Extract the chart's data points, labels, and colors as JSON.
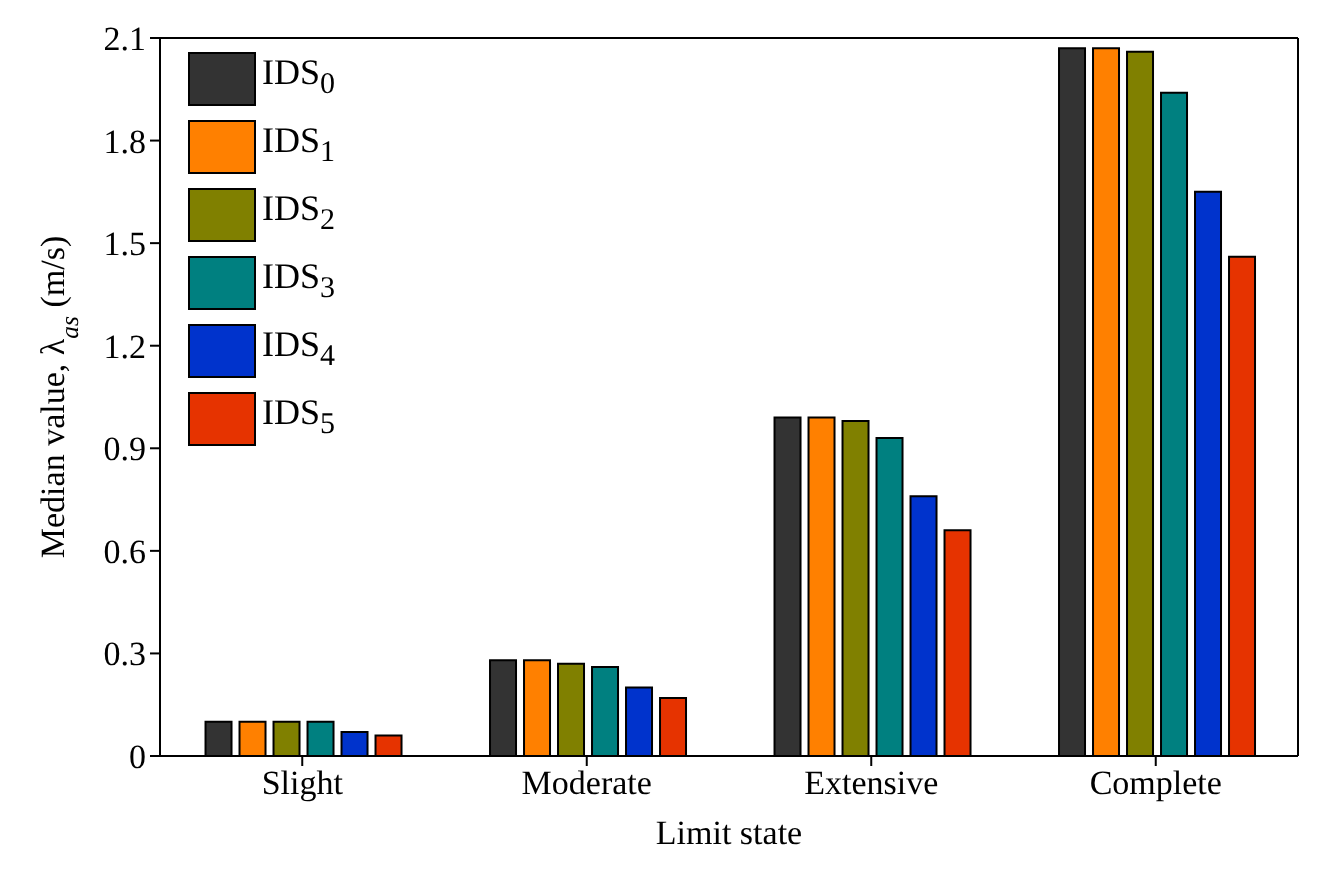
{
  "chart_data": {
    "type": "bar",
    "xlabel": "Limit state",
    "ylabel": "Median value, λ$_{as}$ (m/s)",
    "categories": [
      "Slight",
      "Moderate",
      "Extensive",
      "Complete"
    ],
    "series": [
      {
        "name": "IDS$_{0}$",
        "color": "#333333",
        "values": [
          0.1,
          0.28,
          0.99,
          2.07
        ]
      },
      {
        "name": "IDS$_{1}$",
        "color": "#ff8000",
        "values": [
          0.1,
          0.28,
          0.99,
          2.07
        ]
      },
      {
        "name": "IDS$_{2}$",
        "color": "#808000",
        "values": [
          0.1,
          0.27,
          0.98,
          2.06
        ]
      },
      {
        "name": "IDS$_{3}$",
        "color": "#008080",
        "values": [
          0.1,
          0.26,
          0.93,
          1.94
        ]
      },
      {
        "name": "IDS$_{4}$",
        "color": "#0033cc",
        "values": [
          0.07,
          0.2,
          0.76,
          1.65
        ]
      },
      {
        "name": "IDS$_{5}$",
        "color": "#e63300",
        "values": [
          0.06,
          0.17,
          0.66,
          1.46
        ]
      }
    ],
    "ylim": [
      0,
      2.1
    ],
    "yticks": [
      0,
      0.3,
      0.6,
      0.9,
      1.2,
      1.5,
      1.8,
      2.1
    ],
    "grid": false,
    "legend": "top left"
  }
}
